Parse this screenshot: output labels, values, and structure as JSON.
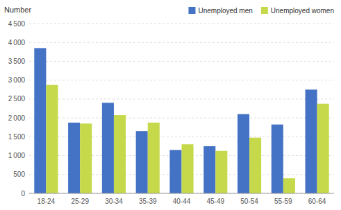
{
  "chart_data": {
    "type": "bar",
    "categories": [
      "18-24",
      "25-29",
      "30-34",
      "35-39",
      "40-44",
      "45-49",
      "50-54",
      "55-59",
      "60-64"
    ],
    "series": [
      {
        "name": "Unemployed men",
        "color": "#4472c4",
        "values": [
          3850,
          1875,
          2400,
          1650,
          1150,
          1250,
          2100,
          1825,
          2750
        ]
      },
      {
        "name": "Unemployed women",
        "color": "#c5d94a",
        "values": [
          2875,
          1850,
          2075,
          1875,
          1300,
          1125,
          1475,
          400,
          2375
        ]
      }
    ],
    "ylabel": "Number",
    "ylim": [
      0,
      4500
    ],
    "yticks": [
      0,
      500,
      {
        "value": 1000,
        "label": "1 000"
      },
      {
        "value": 1500,
        "label": "1 500"
      },
      {
        "value": 2000,
        "label": "2 000"
      },
      {
        "value": 2500,
        "label": "2 500"
      },
      {
        "value": 3000,
        "label": "3 000"
      },
      {
        "value": 3500,
        "label": "3 500"
      },
      {
        "value": 4000,
        "label": "4 000"
      },
      {
        "value": 4500,
        "label": "4 500"
      }
    ],
    "grid": true,
    "legend": "upper right"
  }
}
